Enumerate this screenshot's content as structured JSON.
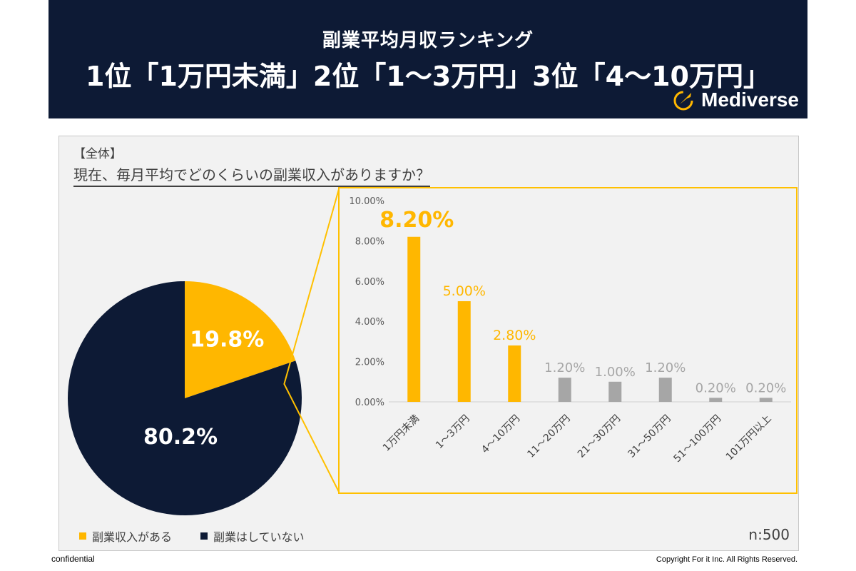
{
  "header": {
    "title_line1": "副業平均月収ランキング",
    "title_line2": "1位「1万円未満」2位「1～3万円」3位「4～10万円」",
    "brand": "Mediverse"
  },
  "panel": {
    "section_label": "【全体】",
    "question": "現在、毎月平均でどのくらいの副業収入がありますか？",
    "n_label": "n:500"
  },
  "footer": {
    "confidential": "confidential",
    "copyright": "Copyright For it Inc. All Rights Reserved."
  },
  "colors": {
    "navy": "#0d1a35",
    "accent": "#ffb700",
    "gray": "#a6a6a6",
    "frame": "#ffc000"
  },
  "chart_data": [
    {
      "type": "pie",
      "slices": [
        {
          "label": "副業収入がある",
          "value": 19.8,
          "value_label": "19.8%",
          "color": "#ffb700"
        },
        {
          "label": "副業はしていない",
          "value": 80.2,
          "value_label": "80.2%",
          "color": "#0d1a35"
        }
      ],
      "legend_position": "bottom-left"
    },
    {
      "type": "bar",
      "categories": [
        "1万円未満",
        "1～3万円",
        "4～10万円",
        "11～20万円",
        "21～30万円",
        "31～50万円",
        "51～100万円",
        "101万円以上"
      ],
      "values": [
        8.2,
        5.0,
        2.8,
        1.2,
        1.0,
        1.2,
        0.2,
        0.2
      ],
      "value_labels": [
        "8.20%",
        "5.00%",
        "2.80%",
        "1.20%",
        "1.00%",
        "1.20%",
        "0.20%",
        "0.20%"
      ],
      "highlight_colors": [
        "#ffb700",
        "#ffb700",
        "#ffb700",
        "#a6a6a6",
        "#a6a6a6",
        "#a6a6a6",
        "#a6a6a6",
        "#a6a6a6"
      ],
      "yticks": [
        "0.00%",
        "2.00%",
        "4.00%",
        "6.00%",
        "8.00%",
        "10.00%"
      ],
      "ylim": [
        0,
        10
      ],
      "grid": false
    }
  ]
}
